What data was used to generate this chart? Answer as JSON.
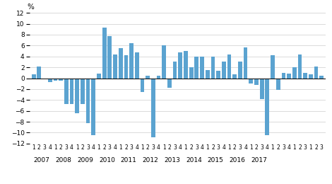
{
  "values": [
    0.7,
    2.2,
    0.0,
    -0.7,
    -0.5,
    -0.5,
    -4.8,
    -4.7,
    -6.5,
    -4.7,
    -8.3,
    -10.5,
    0.8,
    9.3,
    7.8,
    4.3,
    5.5,
    4.2,
    6.5,
    4.7,
    -2.5,
    0.5,
    -10.8,
    0.4,
    6.1,
    -1.7,
    3.0,
    4.7,
    5.0,
    2.0,
    4.0,
    4.0,
    1.5,
    4.0,
    1.4,
    3.0,
    4.4,
    0.7,
    3.0,
    5.6,
    -1.0,
    -1.3,
    -3.8,
    -10.5,
    4.2,
    -2.2,
    1.0,
    0.9,
    2.0,
    4.3,
    1.0,
    0.7,
    2.2,
    0.5
  ],
  "quarter_labels": [
    "1",
    "2",
    "3",
    "4",
    "1",
    "2",
    "3",
    "4",
    "1",
    "2",
    "3",
    "4",
    "1",
    "2",
    "3",
    "4",
    "1",
    "2",
    "3",
    "4",
    "1",
    "2",
    "3",
    "4",
    "1",
    "2",
    "3",
    "4",
    "1",
    "2",
    "3",
    "4",
    "1",
    "2",
    "3",
    "4",
    "1",
    "2",
    "3",
    "4",
    "1",
    "2",
    "3",
    "4",
    "1",
    "2",
    "3",
    "4",
    "1",
    "2",
    "3",
    "1",
    "2",
    "3"
  ],
  "year_labels": [
    "2007",
    "2008",
    "2009",
    "2010",
    "2011",
    "2012",
    "2013",
    "2014",
    "2015",
    "2016",
    "2017"
  ],
  "year_tick_positions": [
    2.5,
    6.5,
    10.5,
    14.5,
    18.5,
    22.5,
    26.5,
    30.5,
    34.5,
    38.5,
    42.5
  ],
  "bar_color": "#5BA3D0",
  "ylim": [
    -12,
    12
  ],
  "yticks": [
    -12,
    -10,
    -8,
    -6,
    -4,
    -2,
    0,
    2,
    4,
    6,
    8,
    10,
    12
  ],
  "percent_label": "%",
  "background_color": "#ffffff",
  "grid_color": "#cccccc"
}
